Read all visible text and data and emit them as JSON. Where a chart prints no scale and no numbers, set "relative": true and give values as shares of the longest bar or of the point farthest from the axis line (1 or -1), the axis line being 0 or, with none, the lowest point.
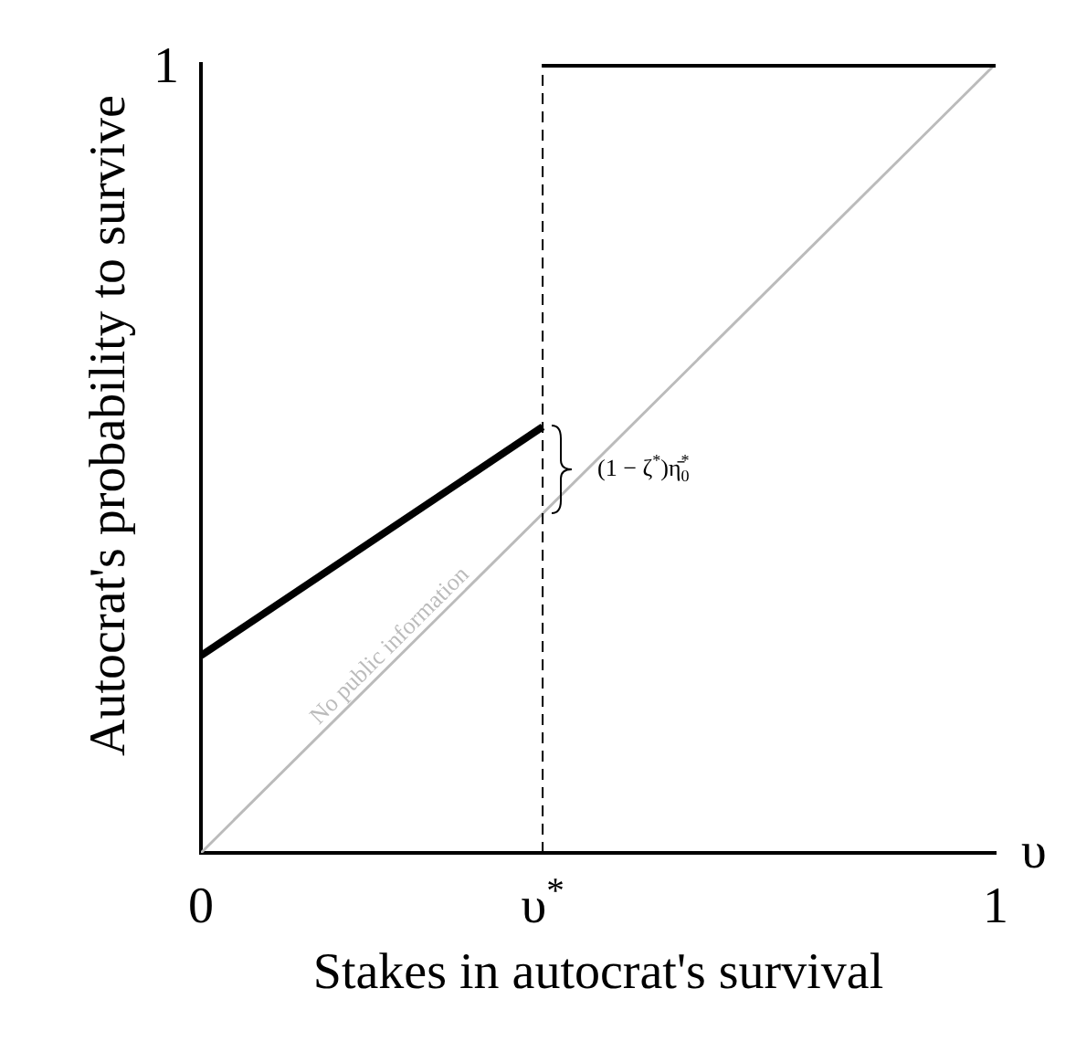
{
  "chart_data": {
    "type": "line",
    "xlabel": "Stakes in autocrat's survival",
    "ylabel": "Autocrat's probability to survive",
    "xlim": [
      0,
      1
    ],
    "relative": true,
    "xticks": [
      {
        "value": 0,
        "label": "0"
      },
      {
        "value": 0.43,
        "label": "υ$^{*}$"
      },
      {
        "value": 1,
        "label": "1"
      }
    ],
    "series": [
      {
        "x": [
          0,
          0.43
        ],
        "values": [
          0.25,
          0.54
        ],
        "color": "#000000"
      },
      {
        "x": [
          0.43,
          1
        ],
        "values": [
          1,
          1
        ],
        "color": "#000000"
      },
      {
        "x": [
          0,
          1
        ],
        "values": [
          0,
          1
        ],
        "color": "#bbbbbb"
      }
    ],
    "ref_lines": [
      {
        "axis": "x",
        "value": 0.43,
        "color": "#000000",
        "line_style": "dashed"
      }
    ],
    "annotations": [
      {
        "text": "(1 − ζ$^{*}$)η̄$_{0}$$^{*}$",
        "x": 0.43,
        "y": 0.49
      },
      {
        "text": "No public information",
        "x": 0.25,
        "y": 0.25
      },
      "1",
      "υ"
    ],
    "grid": false,
    "legend": false,
    "marker": "none",
    "line_style": "solid"
  }
}
